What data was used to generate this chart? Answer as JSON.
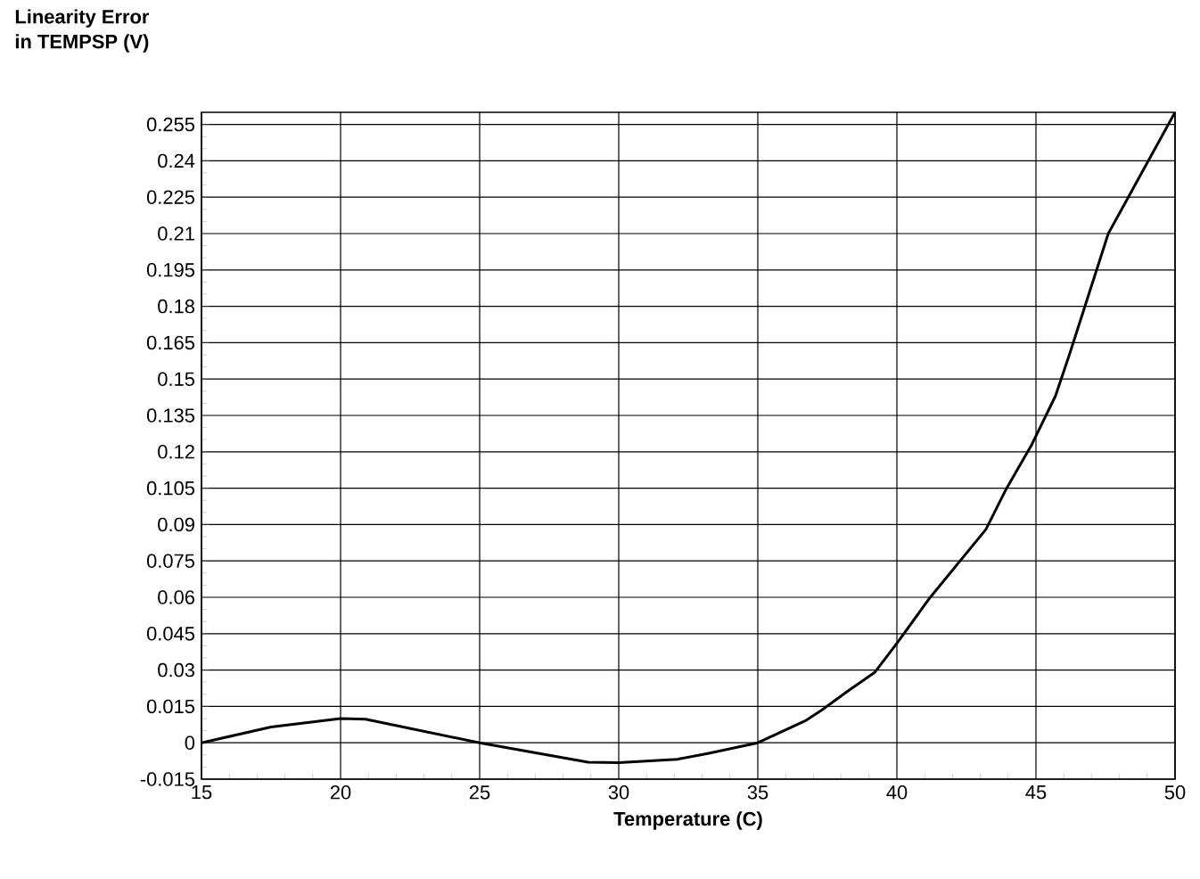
{
  "chart_data": {
    "type": "line",
    "xlabel": "Temperature (C)",
    "ylabel": "Linearity Error\nin TEMPSP (V)",
    "x": [
      15,
      17.5,
      20,
      20.9,
      25,
      28.9,
      30,
      32.1,
      33.2,
      35,
      36.7,
      37.3,
      38.2,
      39.2,
      40,
      41.2,
      43.2,
      43.9,
      44.85,
      45.7,
      46.2,
      47.6,
      50
    ],
    "values": [
      0,
      0.0065,
      0.01,
      0.0097,
      0,
      -0.008,
      -0.0082,
      -0.0068,
      -0.0044,
      0,
      0.009,
      0.0135,
      0.021,
      0.029,
      0.041,
      0.06,
      0.088,
      0.104,
      0.123,
      0.143,
      0.16,
      0.21,
      0.26
    ],
    "color": "#000000",
    "xlim": [
      15,
      50
    ],
    "xticks": [
      15,
      20,
      25,
      30,
      35,
      40,
      45,
      50
    ],
    "ylim": [
      -0.015,
      0.26
    ],
    "yticks": [
      -0.015,
      0,
      0.015,
      0.03,
      0.045,
      0.06,
      0.075,
      0.09,
      0.105,
      0.12,
      0.135,
      0.15,
      0.165,
      0.18,
      0.195,
      0.21,
      0.225,
      0.24,
      0.255
    ],
    "grid": true,
    "marker": "none",
    "line_style": "solid"
  }
}
